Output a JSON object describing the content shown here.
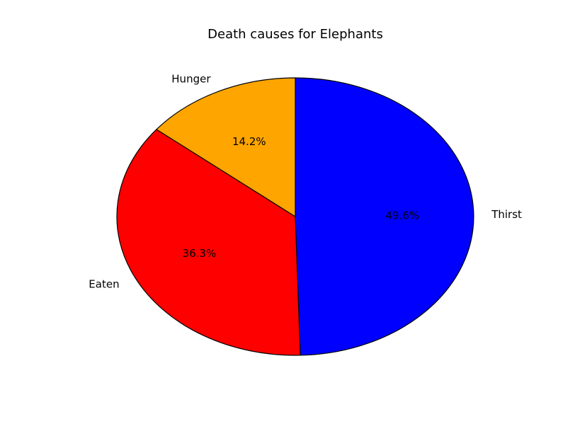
{
  "chart_data": {
    "type": "pie",
    "title": "Death causes for Elephants",
    "slices": [
      {
        "label": "Thirst",
        "percent": 49.6,
        "percent_label": "49.6%",
        "color": "#0000ff"
      },
      {
        "label": "Eaten",
        "percent": 36.3,
        "percent_label": "36.3%",
        "color": "#ff0000"
      },
      {
        "label": "Hunger",
        "percent": 14.2,
        "percent_label": "14.2%",
        "color": "#ffa500"
      }
    ],
    "start_angle": "top (12 o'clock)",
    "direction": "clockwise",
    "edge_color": "#000000"
  }
}
